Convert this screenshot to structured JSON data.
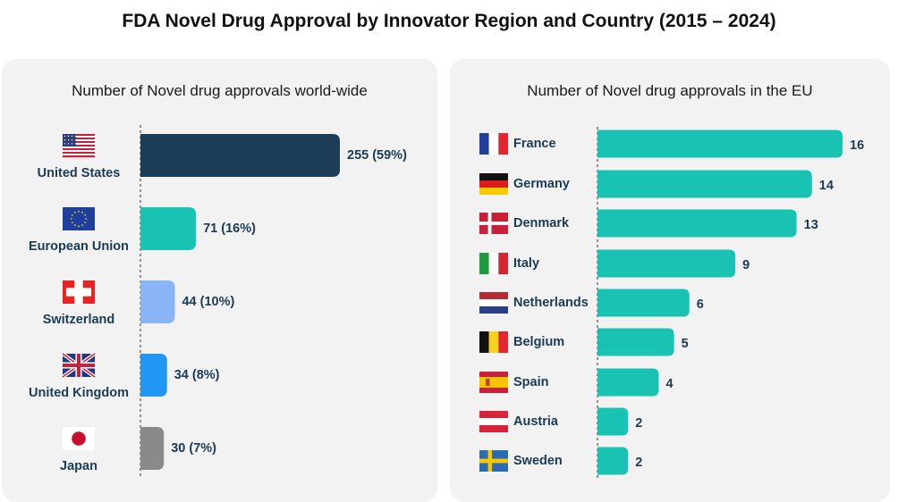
{
  "title": "FDA Novel Drug Approval by Innovator Region and Country (2015 – 2024)",
  "chart_data": [
    {
      "type": "bar",
      "orientation": "horizontal",
      "title": "Number of Novel drug approvals world-wide",
      "categories": [
        "United States",
        "European Union",
        "Switzerland",
        "United Kingdom",
        "Japan"
      ],
      "values": [
        255,
        71,
        44,
        34,
        30
      ],
      "value_labels": [
        "255 (59%)",
        "71 (16%)",
        "44 (10%)",
        "34 (8%)",
        "30 (7%)"
      ],
      "colors": [
        "#1c3d55",
        "#19c3b3",
        "#8ab4f8",
        "#2196f3",
        "#8a8a8a"
      ],
      "flags": [
        "us-flag-icon",
        "eu-flag-icon",
        "switzerland-flag-icon",
        "uk-flag-icon",
        "japan-flag-icon"
      ],
      "xlim": [
        0,
        255
      ],
      "grid": false
    },
    {
      "type": "bar",
      "orientation": "horizontal",
      "title": "Number of Novel drug approvals in the EU",
      "categories": [
        "France",
        "Germany",
        "Denmark",
        "Italy",
        "Netherlands",
        "Belgium",
        "Spain",
        "Austria",
        "Sweden"
      ],
      "values": [
        16,
        14,
        13,
        9,
        6,
        5,
        4,
        2,
        2
      ],
      "value_labels": [
        "16",
        "14",
        "13",
        "9",
        "6",
        "5",
        "4",
        "2",
        "2"
      ],
      "color": "#19c3b3",
      "flags": [
        "france-flag-icon",
        "germany-flag-icon",
        "denmark-flag-icon",
        "italy-flag-icon",
        "netherlands-flag-icon",
        "belgium-flag-icon",
        "spain-flag-icon",
        "austria-flag-icon",
        "sweden-flag-icon"
      ],
      "xlim": [
        0,
        16
      ],
      "grid": false
    }
  ]
}
